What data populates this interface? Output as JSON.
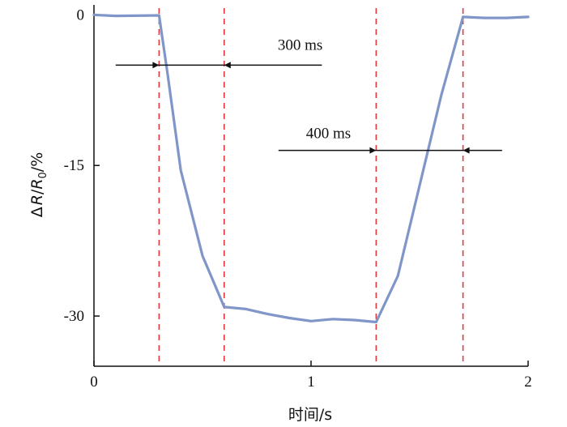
{
  "chart_data": {
    "type": "line",
    "xlabel": "时间/s",
    "ylabel": "ΔR/R0/%",
    "ylabel_parts": {
      "delta": "Δ",
      "r": "R",
      "slash": "/",
      "r0": "R",
      "sub0": "0",
      "unit": "/%"
    },
    "xlim": [
      0,
      2
    ],
    "ylim": [
      -35,
      1
    ],
    "xticks": [
      0,
      1,
      2
    ],
    "xtick_labels": [
      "0",
      "1",
      "2"
    ],
    "yticks": [
      0,
      -15,
      -30
    ],
    "ytick_labels": [
      "0",
      "-15",
      "-30"
    ],
    "grid": false,
    "series": [
      {
        "color": "#8096c8",
        "x": [
          0,
          0.1,
          0.3,
          0.34,
          0.4,
          0.5,
          0.6,
          0.7,
          0.8,
          0.9,
          1.0,
          1.1,
          1.2,
          1.3,
          1.4,
          1.5,
          1.6,
          1.7,
          1.8,
          1.9,
          2.0
        ],
        "y": [
          0,
          -0.1,
          -0.05,
          -6,
          -15.5,
          -24,
          -29.1,
          -29.3,
          -29.8,
          -30.2,
          -30.5,
          -30.3,
          -30.4,
          -30.6,
          -26,
          -17,
          -8,
          -0.2,
          -0.3,
          -0.3,
          -0.2
        ]
      }
    ],
    "vlines": {
      "x": [
        0.3,
        0.6,
        1.3,
        1.7
      ],
      "color": "#e0383c"
    },
    "annotations": [
      {
        "text": "300 ms",
        "y": -5,
        "from_x": 0.3,
        "to_x": 0.6,
        "line_start": 0.1,
        "line_end": 1.05,
        "text_x": 0.95,
        "text_y": -3
      },
      {
        "text": "400 ms",
        "y": -13.5,
        "from_x": 1.3,
        "to_x": 1.7,
        "line_start": 0.85,
        "line_end": 1.88,
        "text_x": 1.08,
        "text_y": -11.8
      }
    ]
  }
}
